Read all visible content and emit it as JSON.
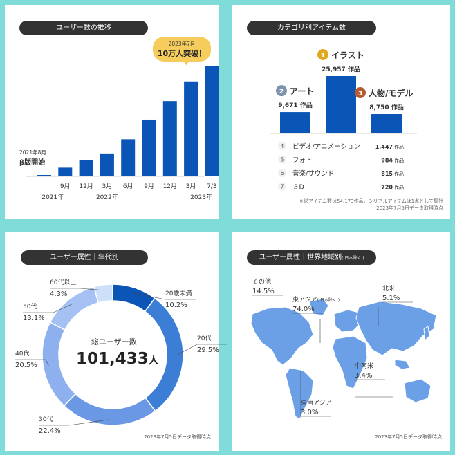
{
  "panels": {
    "users": {
      "title": "ユーザー数の推移",
      "callout_line1": "2023年7月",
      "callout_line2": "10万人突破！",
      "start_note_line1": "2021年8月",
      "start_note_line2": "β版開始"
    },
    "category": {
      "title": "カテゴリ別アイテム数",
      "note_line1": "※総アイテム数は54,173作品。シリアルアイテムは1点として集計",
      "note_line2": "2023年7月5日データ取得時点"
    },
    "age": {
      "title": "ユーザー属性｜年代別",
      "center_label": "総ユーザー数",
      "center_value": "101,433",
      "center_unit": "人",
      "note": "2023年7月5日データ取得時点"
    },
    "region": {
      "title": "ユーザー属性｜世界地域別",
      "title_suffix": "( 日本除く )",
      "note": "2023年7月5日データ取得時点",
      "sea_color": "#ffffff",
      "land_color": "#6b9fe6"
    }
  },
  "chart_data": [
    {
      "type": "bar",
      "title": "ユーザー数の推移",
      "categories": [
        "2021-08",
        "2021-09",
        "2021-12",
        "2022-03",
        "2022-06",
        "2022-09",
        "2022-12",
        "2023-03",
        "2023-07-03"
      ],
      "tick_labels": [
        "",
        "9月",
        "12月",
        "3月",
        "6月",
        "9月",
        "12月",
        "3月",
        "7/3"
      ],
      "year_labels": [
        "2021年",
        "2022年",
        "2023年"
      ],
      "values": [
        1000,
        8000,
        15000,
        21000,
        34000,
        52000,
        69000,
        87000,
        101433
      ],
      "ylim": [
        0,
        110000
      ],
      "color": "#0a55b5"
    },
    {
      "type": "bar",
      "title": "カテゴリ別アイテム数",
      "top3": [
        {
          "rank": "1",
          "name": "イラスト",
          "value": 25957,
          "label": "25,957",
          "unit": "作品",
          "badge_color": "#e0a81e"
        },
        {
          "rank": "2",
          "name": "アート",
          "value": 9671,
          "label": "9,671",
          "unit": "作品",
          "badge_color": "#7d93ad"
        },
        {
          "rank": "3",
          "name": "人物/モデル",
          "value": 8750,
          "label": "8,750",
          "unit": "作品",
          "badge_color": "#b5592f"
        }
      ],
      "others": [
        {
          "rank": "4",
          "name": "ビデオ/アニメーション",
          "label": "1,447",
          "unit": "作品"
        },
        {
          "rank": "5",
          "name": "フォト",
          "label": "984",
          "unit": "作品"
        },
        {
          "rank": "6",
          "name": "音楽/サウンド",
          "label": "815",
          "unit": "作品"
        },
        {
          "rank": "7",
          "name": "３D",
          "label": "720",
          "unit": "作品"
        }
      ],
      "color": "#0a55b5"
    },
    {
      "type": "pie",
      "title": "ユーザー属性｜年代別",
      "slices": [
        {
          "name": "20歳未満",
          "value": 10.2,
          "label": "10.2%",
          "color": "#0a55b5"
        },
        {
          "name": "20代",
          "value": 29.5,
          "label": "29.5%",
          "color": "#3c7ed6"
        },
        {
          "name": "30代",
          "value": 22.4,
          "label": "22.4%",
          "color": "#6a98e4"
        },
        {
          "name": "40代",
          "value": 20.5,
          "label": "20.5%",
          "color": "#8fb0ee"
        },
        {
          "name": "50代",
          "value": 13.1,
          "label": "13.1%",
          "color": "#a5c0f2"
        },
        {
          "name": "60代以上",
          "value": 4.3,
          "label": "4.3%",
          "color": "#cde0fa"
        }
      ]
    },
    {
      "type": "table",
      "title": "ユーザー属性｜世界地域別",
      "regions": [
        {
          "name": "その他",
          "label": "14.5%",
          "value": 14.5
        },
        {
          "name": "東アジア",
          "suffix": "( 日本除く )",
          "label": "74.0%",
          "value": 74.0
        },
        {
          "name": "北米",
          "label": "5.1%",
          "value": 5.1
        },
        {
          "name": "中南米",
          "label": "3.4%",
          "value": 3.4
        },
        {
          "name": "東南アジア",
          "label": "3.0%",
          "value": 3.0
        }
      ]
    }
  ]
}
